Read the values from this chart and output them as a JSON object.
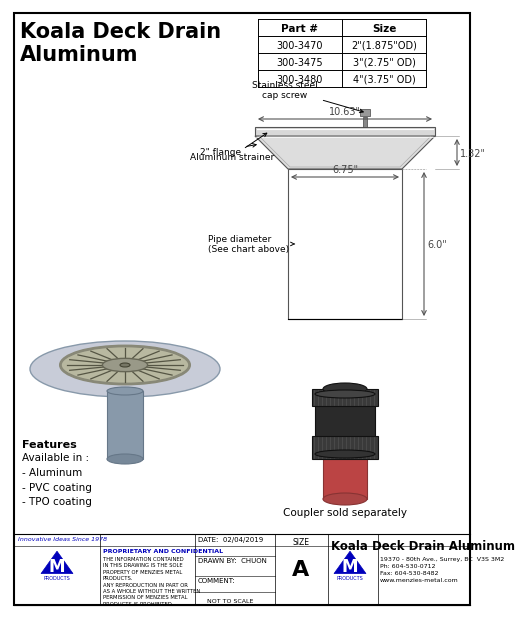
{
  "title": "Koala Deck Drain\nAluminum",
  "bg_color": "#ffffff",
  "border_color": "#000000",
  "table_headers": [
    "Part #",
    "Size"
  ],
  "table_rows": [
    [
      "300-3470",
      "2\"(1.875\"OD)"
    ],
    [
      "300-3475",
      "3\"(2.75\" OD)"
    ],
    [
      "300-3480",
      "4\"(3.75\" OD)"
    ]
  ],
  "dim_10_63": "10.63\"",
  "dim_6_75": "6.75\"",
  "dim_1_32": "1.32\"",
  "dim_6_0": "6.0\"",
  "label_stainless": "Stainless steel\ncap screw",
  "label_strainer": "Aluminum strainer",
  "label_flange": "2\" flange",
  "label_pipe": "Pipe diameter\n(See chart above)",
  "label_coupler": "Coupler sold separately",
  "features_title": "Features",
  "features_text": "Available in :\n- Aluminum\n- PVC coating\n- TPO coating",
  "footer_date": "02/04/2019",
  "footer_drawn": "CHUON",
  "footer_title": "Koala Deck Drain Aluminum",
  "footer_size": "A",
  "footer_address": "19370 - 80th Ave., Surrey, BC  V3S 3M2\nPh: 604-530-0712\nFax: 604-530-8482\nwww.menzies-metal.com",
  "footer_proprietary": "PROPRIETARY AND CONFIDENTIAL",
  "footer_info": "THE INFORMATION CONTAINED\nIN THIS DRAWING IS THE SOLE\nPROPERTY OF MENZIES METAL\nPRODUCTS.\nANY REPRODUCTION IN PART OR\nAS A WHOLE WITHOUT THE WRITTEN\nPERMISSION OF MENZIES METAL\nPRODUCTS IS PROHIBITED.",
  "footer_innovation": "Innovative Ideas Since 1978",
  "blue_color": "#0000bb",
  "light_gray": "#c8ccd8",
  "drain_gray": "#8899aa",
  "strainer_color": "#9a9a80",
  "pipe_color": "#8899aa",
  "pipe_red": "#bb4444",
  "coupler_dark": "#2a2a2a",
  "coupler_mid": "#444444",
  "coupler_light": "#666666"
}
